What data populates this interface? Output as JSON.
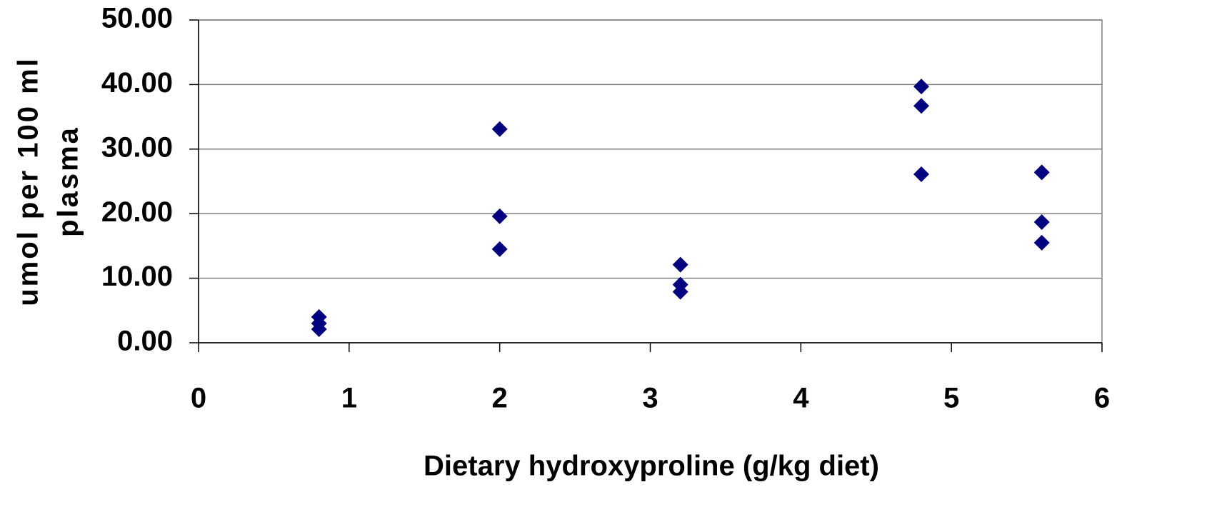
{
  "chart_data": {
    "type": "scatter",
    "x_label": "Dietary hydroxyproline (g/kg diet)",
    "y_label": [
      "umol per 100 ml",
      "plasma"
    ],
    "series": [
      {
        "color": "#000080",
        "x": [
          0.8,
          0.8,
          0.8,
          2,
          2,
          2,
          3.2,
          3.2,
          3.2,
          4.8,
          4.8,
          4.8,
          5.6,
          5.6,
          5.6
        ],
        "values": [
          4.0,
          3.0,
          2.1,
          33.1,
          19.6,
          14.5,
          12.1,
          9.0,
          7.9,
          39.7,
          36.7,
          26.1,
          26.4,
          18.7,
          15.5
        ]
      }
    ],
    "xlim": [
      0,
      6
    ],
    "xticks": [
      0,
      1,
      2,
      3,
      4,
      5,
      6
    ],
    "ylim": [
      0,
      50
    ],
    "yticks": [
      {
        "value": 0,
        "label": "0.00"
      },
      {
        "value": 10,
        "label": "10.00"
      },
      {
        "value": 20,
        "label": "20.00"
      },
      {
        "value": 30,
        "label": "30.00"
      },
      {
        "value": 40,
        "label": "40.00"
      },
      {
        "value": 50,
        "label": "50.00"
      }
    ],
    "grid": true
  }
}
